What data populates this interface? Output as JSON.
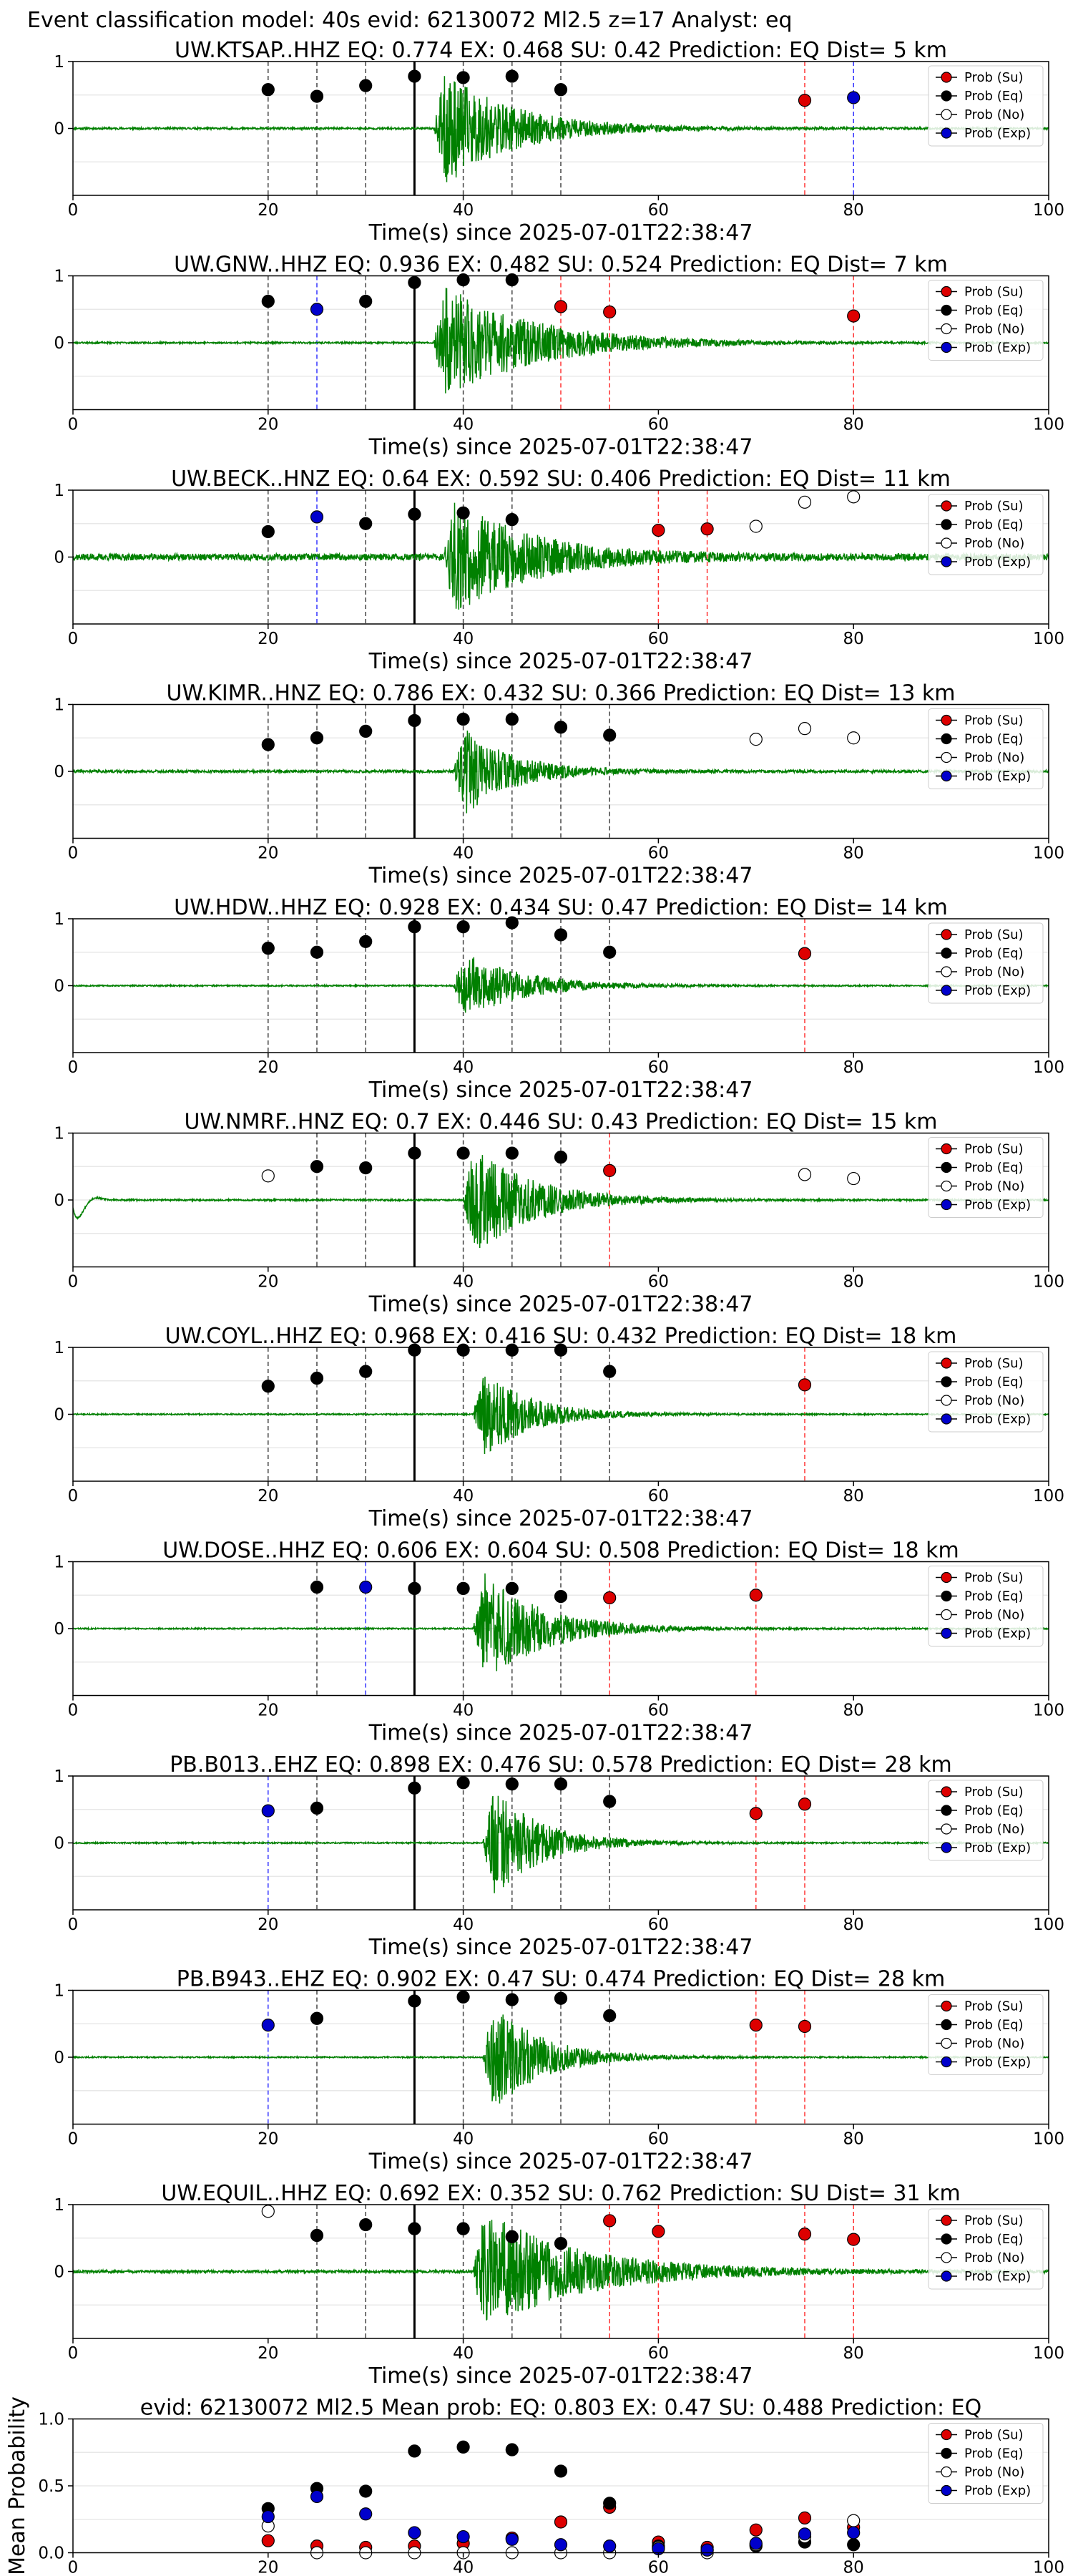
{
  "figure": {
    "suptitle": "Event classification model: 40s evid: 62130072 Ml2.5 z=17 Analyst: eq"
  },
  "legend": {
    "entries": [
      {
        "label": "Prob (Su)",
        "key": "su"
      },
      {
        "label": "Prob (Eq)",
        "key": "eq"
      },
      {
        "label": "Prob (No)",
        "key": "no"
      },
      {
        "label": "Prob (Exp)",
        "key": "exp"
      }
    ],
    "placement": "top-right"
  },
  "colors": {
    "su": "#dd0000",
    "eq": "#000000",
    "no": "#ffffff",
    "exp": "#0000cc",
    "waveform": "#008000",
    "grid": "#e8e8e8",
    "line_su": "#ff3333",
    "line_eq": "#444444",
    "line_exp": "#3333ff"
  },
  "chart_data": [
    {
      "type": "line",
      "panel": "station",
      "title": "UW.KTSAP..HHZ   EQ: 0.774  EX: 0.468  SU: 0.42   Prediction: EQ    Dist= 5 km",
      "xlabel": "Time(s) since 2025-07-01T22:38:47",
      "xlim": [
        0,
        100
      ],
      "xticks": [
        "0",
        "20",
        "40",
        "60",
        "80",
        "100"
      ],
      "ylim": [
        -1,
        1
      ],
      "yticks": [
        "0",
        "1"
      ],
      "grid": true,
      "waveform": {
        "onset": 37,
        "peak": 1.0,
        "decay": 7,
        "noise": 0.015,
        "seed": 11
      },
      "origin_time": 35,
      "points": [
        {
          "x": 20,
          "y": 0.58,
          "cls": "eq"
        },
        {
          "x": 25,
          "y": 0.48,
          "cls": "eq"
        },
        {
          "x": 30,
          "y": 0.64,
          "cls": "eq"
        },
        {
          "x": 35,
          "y": 0.78,
          "cls": "eq"
        },
        {
          "x": 40,
          "y": 0.76,
          "cls": "eq"
        },
        {
          "x": 45,
          "y": 0.78,
          "cls": "eq"
        },
        {
          "x": 50,
          "y": 0.58,
          "cls": "eq"
        },
        {
          "x": 75,
          "y": 0.42,
          "cls": "su"
        },
        {
          "x": 80,
          "y": 0.46,
          "cls": "exp"
        }
      ]
    },
    {
      "type": "line",
      "panel": "station",
      "title": "UW.GNW..HHZ   EQ: 0.936  EX: 0.482  SU: 0.524   Prediction: EQ    Dist= 7 km",
      "xlabel": "Time(s) since 2025-07-01T22:38:47",
      "xlim": [
        0,
        100
      ],
      "xticks": [
        "0",
        "20",
        "40",
        "60",
        "80",
        "100"
      ],
      "ylim": [
        -1,
        1
      ],
      "yticks": [
        "0",
        "1"
      ],
      "grid": true,
      "waveform": {
        "onset": 37,
        "peak": 1.0,
        "decay": 9,
        "noise": 0.012,
        "seed": 23
      },
      "origin_time": 35,
      "points": [
        {
          "x": 20,
          "y": 0.62,
          "cls": "eq"
        },
        {
          "x": 25,
          "y": 0.5,
          "cls": "exp"
        },
        {
          "x": 30,
          "y": 0.62,
          "cls": "eq"
        },
        {
          "x": 35,
          "y": 0.9,
          "cls": "eq"
        },
        {
          "x": 40,
          "y": 0.94,
          "cls": "eq"
        },
        {
          "x": 45,
          "y": 0.94,
          "cls": "eq"
        },
        {
          "x": 50,
          "y": 0.54,
          "cls": "su"
        },
        {
          "x": 55,
          "y": 0.46,
          "cls": "su"
        },
        {
          "x": 80,
          "y": 0.4,
          "cls": "su"
        }
      ]
    },
    {
      "type": "line",
      "panel": "station",
      "title": "UW.BECK..HNZ   EQ: 0.64  EX: 0.592  SU: 0.406   Prediction: EQ    Dist= 11 km",
      "xlabel": "Time(s) since 2025-07-01T22:38:47",
      "xlim": [
        0,
        100
      ],
      "xticks": [
        "0",
        "20",
        "40",
        "60",
        "80",
        "100"
      ],
      "ylim": [
        -1,
        1
      ],
      "yticks": [
        "0",
        "1"
      ],
      "grid": true,
      "waveform": {
        "onset": 38,
        "peak": 0.95,
        "decay": 8,
        "noise": 0.05,
        "seed": 37
      },
      "origin_time": 35,
      "points": [
        {
          "x": 20,
          "y": 0.38,
          "cls": "eq"
        },
        {
          "x": 25,
          "y": 0.6,
          "cls": "exp"
        },
        {
          "x": 30,
          "y": 0.5,
          "cls": "eq"
        },
        {
          "x": 35,
          "y": 0.64,
          "cls": "eq"
        },
        {
          "x": 40,
          "y": 0.66,
          "cls": "eq"
        },
        {
          "x": 45,
          "y": 0.56,
          "cls": "eq"
        },
        {
          "x": 60,
          "y": 0.4,
          "cls": "su"
        },
        {
          "x": 65,
          "y": 0.42,
          "cls": "su"
        },
        {
          "x": 70,
          "y": 0.46,
          "cls": "no"
        },
        {
          "x": 75,
          "y": 0.82,
          "cls": "no"
        },
        {
          "x": 80,
          "y": 0.9,
          "cls": "no"
        }
      ]
    },
    {
      "type": "line",
      "panel": "station",
      "title": "UW.KIMR..HNZ   EQ: 0.786  EX: 0.432  SU: 0.366   Prediction: EQ    Dist= 13 km",
      "xlabel": "Time(s) since 2025-07-01T22:38:47",
      "xlim": [
        0,
        100
      ],
      "xticks": [
        "0",
        "20",
        "40",
        "60",
        "80",
        "100"
      ],
      "ylim": [
        -1,
        1
      ],
      "yticks": [
        "0",
        "1"
      ],
      "grid": true,
      "waveform": {
        "onset": 39,
        "peak": 0.8,
        "decay": 5,
        "noise": 0.02,
        "seed": 41
      },
      "origin_time": 35,
      "points": [
        {
          "x": 20,
          "y": 0.4,
          "cls": "eq"
        },
        {
          "x": 25,
          "y": 0.5,
          "cls": "eq"
        },
        {
          "x": 30,
          "y": 0.6,
          "cls": "eq"
        },
        {
          "x": 35,
          "y": 0.76,
          "cls": "eq"
        },
        {
          "x": 40,
          "y": 0.78,
          "cls": "eq"
        },
        {
          "x": 45,
          "y": 0.78,
          "cls": "eq"
        },
        {
          "x": 50,
          "y": 0.66,
          "cls": "eq"
        },
        {
          "x": 55,
          "y": 0.54,
          "cls": "eq"
        },
        {
          "x": 70,
          "y": 0.48,
          "cls": "no"
        },
        {
          "x": 75,
          "y": 0.64,
          "cls": "no"
        },
        {
          "x": 80,
          "y": 0.5,
          "cls": "no"
        }
      ]
    },
    {
      "type": "line",
      "panel": "station",
      "title": "UW.HDW..HHZ   EQ: 0.928  EX: 0.434  SU: 0.47   Prediction: EQ    Dist= 14 km",
      "xlabel": "Time(s) since 2025-07-01T22:38:47",
      "xlim": [
        0,
        100
      ],
      "xticks": [
        "0",
        "20",
        "40",
        "60",
        "80",
        "100"
      ],
      "ylim": [
        -1,
        1
      ],
      "yticks": [
        "0",
        "1"
      ],
      "grid": true,
      "waveform": {
        "onset": 39,
        "peak": 0.6,
        "decay": 6,
        "noise": 0.01,
        "seed": 53
      },
      "origin_time": 35,
      "points": [
        {
          "x": 20,
          "y": 0.56,
          "cls": "eq"
        },
        {
          "x": 25,
          "y": 0.5,
          "cls": "eq"
        },
        {
          "x": 30,
          "y": 0.66,
          "cls": "eq"
        },
        {
          "x": 35,
          "y": 0.88,
          "cls": "eq"
        },
        {
          "x": 40,
          "y": 0.88,
          "cls": "eq"
        },
        {
          "x": 45,
          "y": 0.94,
          "cls": "eq"
        },
        {
          "x": 50,
          "y": 0.76,
          "cls": "eq"
        },
        {
          "x": 55,
          "y": 0.5,
          "cls": "eq"
        },
        {
          "x": 75,
          "y": 0.48,
          "cls": "su"
        }
      ]
    },
    {
      "type": "line",
      "panel": "station",
      "title": "UW.NMRF..HNZ   EQ: 0.7  EX: 0.446  SU: 0.43   Prediction: EQ    Dist= 15 km",
      "xlabel": "Time(s) since 2025-07-01T22:38:47",
      "xlim": [
        0,
        100
      ],
      "xticks": [
        "0",
        "20",
        "40",
        "60",
        "80",
        "100"
      ],
      "ylim": [
        -1,
        1
      ],
      "yticks": [
        "0",
        "1"
      ],
      "grid": true,
      "waveform": {
        "onset": 40,
        "peak": 1.0,
        "decay": 6,
        "noise": 0.012,
        "seed": 67,
        "start_dip": true
      },
      "origin_time": 35,
      "points": [
        {
          "x": 20,
          "y": 0.36,
          "cls": "no"
        },
        {
          "x": 25,
          "y": 0.5,
          "cls": "eq"
        },
        {
          "x": 30,
          "y": 0.48,
          "cls": "eq"
        },
        {
          "x": 35,
          "y": 0.7,
          "cls": "eq"
        },
        {
          "x": 40,
          "y": 0.7,
          "cls": "eq"
        },
        {
          "x": 45,
          "y": 0.7,
          "cls": "eq"
        },
        {
          "x": 50,
          "y": 0.64,
          "cls": "eq"
        },
        {
          "x": 55,
          "y": 0.44,
          "cls": "su"
        },
        {
          "x": 75,
          "y": 0.38,
          "cls": "no"
        },
        {
          "x": 80,
          "y": 0.32,
          "cls": "no"
        }
      ]
    },
    {
      "type": "line",
      "panel": "station",
      "title": "UW.COYL..HHZ   EQ: 0.968  EX: 0.416  SU: 0.432   Prediction: EQ    Dist= 18 km",
      "xlabel": "Time(s) since 2025-07-01T22:38:47",
      "xlim": [
        0,
        100
      ],
      "xticks": [
        "0",
        "20",
        "40",
        "60",
        "80",
        "100"
      ],
      "ylim": [
        -1,
        1
      ],
      "yticks": [
        "0",
        "1"
      ],
      "grid": true,
      "waveform": {
        "onset": 41,
        "peak": 0.8,
        "decay": 5,
        "noise": 0.01,
        "seed": 71
      },
      "origin_time": 35,
      "points": [
        {
          "x": 20,
          "y": 0.42,
          "cls": "eq"
        },
        {
          "x": 25,
          "y": 0.54,
          "cls": "eq"
        },
        {
          "x": 30,
          "y": 0.64,
          "cls": "eq"
        },
        {
          "x": 35,
          "y": 0.96,
          "cls": "eq"
        },
        {
          "x": 40,
          "y": 0.96,
          "cls": "eq"
        },
        {
          "x": 45,
          "y": 0.96,
          "cls": "eq"
        },
        {
          "x": 50,
          "y": 0.96,
          "cls": "eq"
        },
        {
          "x": 55,
          "y": 0.64,
          "cls": "eq"
        },
        {
          "x": 75,
          "y": 0.44,
          "cls": "su"
        }
      ]
    },
    {
      "type": "line",
      "panel": "station",
      "title": "UW.DOSE..HHZ   EQ: 0.606  EX: 0.604  SU: 0.508   Prediction: EQ    Dist= 18 km",
      "xlabel": "Time(s) since 2025-07-01T22:38:47",
      "xlim": [
        0,
        100
      ],
      "xticks": [
        "0",
        "20",
        "40",
        "60",
        "80",
        "100"
      ],
      "ylim": [
        -1,
        1
      ],
      "yticks": [
        "0",
        "1"
      ],
      "grid": true,
      "waveform": {
        "onset": 41,
        "peak": 1.0,
        "decay": 6,
        "noise": 0.01,
        "seed": 83
      },
      "origin_time": 35,
      "points": [
        {
          "x": 25,
          "y": 0.62,
          "cls": "eq"
        },
        {
          "x": 30,
          "y": 0.62,
          "cls": "exp"
        },
        {
          "x": 35,
          "y": 0.6,
          "cls": "eq"
        },
        {
          "x": 40,
          "y": 0.6,
          "cls": "eq"
        },
        {
          "x": 45,
          "y": 0.6,
          "cls": "eq"
        },
        {
          "x": 50,
          "y": 0.48,
          "cls": "eq"
        },
        {
          "x": 55,
          "y": 0.46,
          "cls": "su"
        },
        {
          "x": 70,
          "y": 0.5,
          "cls": "su"
        }
      ]
    },
    {
      "type": "line",
      "panel": "station",
      "title": "PB.B013..EHZ   EQ: 0.898  EX: 0.476  SU: 0.578   Prediction: EQ    Dist= 28 km",
      "xlabel": "Time(s) since 2025-07-01T22:38:47",
      "xlim": [
        0,
        100
      ],
      "xticks": [
        "0",
        "20",
        "40",
        "60",
        "80",
        "100"
      ],
      "ylim": [
        -1,
        1
      ],
      "yticks": [
        "0",
        "1"
      ],
      "grid": true,
      "waveform": {
        "onset": 42,
        "peak": 1.0,
        "decay": 5,
        "noise": 0.01,
        "seed": 97
      },
      "origin_time": 35,
      "points": [
        {
          "x": 20,
          "y": 0.48,
          "cls": "exp"
        },
        {
          "x": 25,
          "y": 0.52,
          "cls": "eq"
        },
        {
          "x": 35,
          "y": 0.82,
          "cls": "eq"
        },
        {
          "x": 40,
          "y": 0.9,
          "cls": "eq"
        },
        {
          "x": 45,
          "y": 0.88,
          "cls": "eq"
        },
        {
          "x": 50,
          "y": 0.88,
          "cls": "eq"
        },
        {
          "x": 55,
          "y": 0.62,
          "cls": "eq"
        },
        {
          "x": 70,
          "y": 0.44,
          "cls": "su"
        },
        {
          "x": 75,
          "y": 0.58,
          "cls": "su"
        }
      ]
    },
    {
      "type": "line",
      "panel": "station",
      "title": "PB.B943..EHZ   EQ: 0.902  EX: 0.47  SU: 0.474   Prediction: EQ    Dist= 28 km",
      "xlabel": "Time(s) since 2025-07-01T22:38:47",
      "xlim": [
        0,
        100
      ],
      "xticks": [
        "0",
        "20",
        "40",
        "60",
        "80",
        "100"
      ],
      "ylim": [
        -1,
        1
      ],
      "yticks": [
        "0",
        "1"
      ],
      "grid": true,
      "waveform": {
        "onset": 42,
        "peak": 1.0,
        "decay": 5,
        "noise": 0.01,
        "seed": 101
      },
      "origin_time": 35,
      "points": [
        {
          "x": 20,
          "y": 0.48,
          "cls": "exp"
        },
        {
          "x": 25,
          "y": 0.58,
          "cls": "eq"
        },
        {
          "x": 35,
          "y": 0.84,
          "cls": "eq"
        },
        {
          "x": 40,
          "y": 0.9,
          "cls": "eq"
        },
        {
          "x": 45,
          "y": 0.86,
          "cls": "eq"
        },
        {
          "x": 50,
          "y": 0.88,
          "cls": "eq"
        },
        {
          "x": 55,
          "y": 0.62,
          "cls": "eq"
        },
        {
          "x": 70,
          "y": 0.48,
          "cls": "su"
        },
        {
          "x": 75,
          "y": 0.46,
          "cls": "su"
        }
      ]
    },
    {
      "type": "line",
      "panel": "station",
      "title": "UW.EQUIL..HHZ   EQ: 0.692  EX: 0.352  SU: 0.762   Prediction: SU    Dist= 31 km",
      "xlabel": "Time(s) since 2025-07-01T22:38:47",
      "xlim": [
        0,
        100
      ],
      "xticks": [
        "0",
        "20",
        "40",
        "60",
        "80",
        "100"
      ],
      "ylim": [
        -1,
        1
      ],
      "yticks": [
        "0",
        "1"
      ],
      "grid": true,
      "waveform": {
        "onset": 41,
        "peak": 1.0,
        "decay": 10,
        "noise": 0.02,
        "seed": 113
      },
      "origin_time": 35,
      "points": [
        {
          "x": 20,
          "y": 0.9,
          "cls": "no"
        },
        {
          "x": 25,
          "y": 0.54,
          "cls": "eq"
        },
        {
          "x": 30,
          "y": 0.7,
          "cls": "eq"
        },
        {
          "x": 35,
          "y": 0.64,
          "cls": "eq"
        },
        {
          "x": 40,
          "y": 0.64,
          "cls": "eq"
        },
        {
          "x": 45,
          "y": 0.52,
          "cls": "eq"
        },
        {
          "x": 50,
          "y": 0.42,
          "cls": "eq"
        },
        {
          "x": 55,
          "y": 0.76,
          "cls": "su"
        },
        {
          "x": 60,
          "y": 0.6,
          "cls": "su"
        },
        {
          "x": 75,
          "y": 0.56,
          "cls": "su"
        },
        {
          "x": 80,
          "y": 0.48,
          "cls": "su"
        }
      ]
    },
    {
      "type": "scatter",
      "panel": "mean",
      "title": "evid: 62130072  Ml2.5   Mean prob:   EQ: 0.803  EX: 0.47  SU: 0.488   Prediction: EQ",
      "xlabel": "",
      "ylabel": "Mean Probability",
      "xlim": [
        0,
        100
      ],
      "xticks": [
        "0",
        "20",
        "40",
        "60",
        "80",
        "100"
      ],
      "ylim": [
        0,
        1
      ],
      "yticks": [
        "0.0",
        "0.5",
        "1.0"
      ],
      "grid": true,
      "series": [
        {
          "name": "Prob (Su)",
          "cls": "su",
          "x": [
            20,
            25,
            30,
            35,
            40,
            45,
            50,
            55,
            60,
            65,
            70,
            75,
            80
          ],
          "y": [
            0.09,
            0.05,
            0.04,
            0.05,
            0.07,
            0.11,
            0.23,
            0.34,
            0.08,
            0.04,
            0.17,
            0.26,
            0.19
          ]
        },
        {
          "name": "Prob (Eq)",
          "cls": "eq",
          "x": [
            20,
            25,
            30,
            35,
            40,
            45,
            50,
            55,
            60,
            65,
            70,
            75,
            80
          ],
          "y": [
            0.33,
            0.48,
            0.46,
            0.76,
            0.79,
            0.77,
            0.61,
            0.37,
            0.05,
            0.02,
            0.05,
            0.08,
            0.06
          ]
        },
        {
          "name": "Prob (No)",
          "cls": "no",
          "x": [
            20,
            25,
            30,
            35,
            40,
            45,
            50,
            55,
            60,
            65,
            70,
            75,
            80
          ],
          "y": [
            0.2,
            0.0,
            0.0,
            0.0,
            0.0,
            0.0,
            0.0,
            0.0,
            0.04,
            0.0,
            0.06,
            0.12,
            0.24
          ]
        },
        {
          "name": "Prob (Exp)",
          "cls": "exp",
          "x": [
            20,
            25,
            30,
            35,
            40,
            45,
            50,
            55,
            60,
            65,
            70,
            75,
            80
          ],
          "y": [
            0.27,
            0.42,
            0.29,
            0.15,
            0.12,
            0.1,
            0.06,
            0.05,
            0.03,
            0.02,
            0.07,
            0.14,
            0.15
          ]
        }
      ]
    }
  ]
}
